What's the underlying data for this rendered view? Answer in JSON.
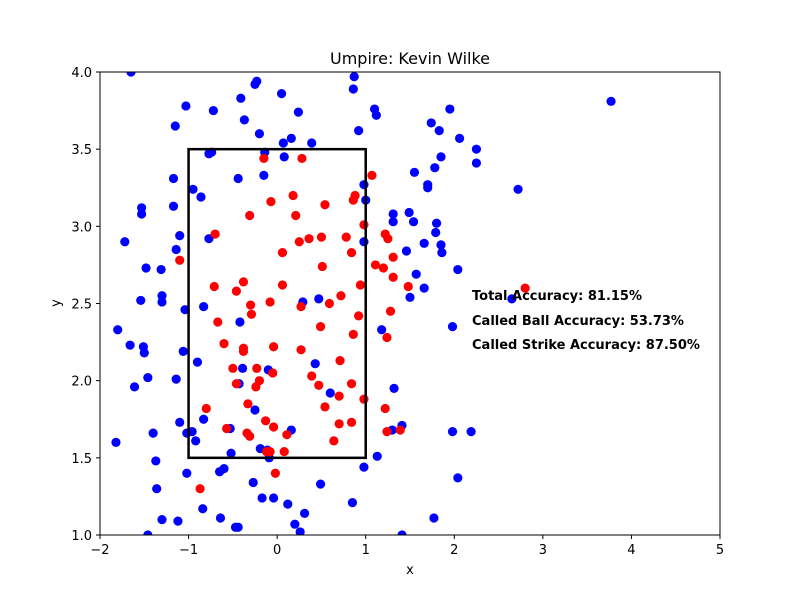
{
  "chart_data": {
    "type": "scatter",
    "title": "Umpire: Kevin Wilke",
    "xlabel": "x",
    "ylabel": "y",
    "xlim": [
      -2,
      5
    ],
    "ylim": [
      1.0,
      4.0
    ],
    "xticks": [
      "−2",
      "−1",
      "0",
      "1",
      "2",
      "3",
      "4",
      "5"
    ],
    "yticks": [
      "1.0",
      "1.5",
      "2.0",
      "2.5",
      "3.0",
      "3.5",
      "4.0"
    ],
    "grid": false,
    "strike_zone": {
      "x": [
        -1,
        1
      ],
      "y": [
        1.5,
        3.5
      ]
    },
    "annotations": [
      "Total Accuracy: 81.15%",
      "Called Ball Accuracy: 53.73%",
      "Called Strike Accuracy: 87.50%"
    ],
    "colors": {
      "ball": "#0000ff",
      "strike": "#ff0000",
      "zone": "#000000"
    },
    "series": [
      {
        "color": "#0000ff",
        "points": [
          [
            -1.65,
            4.0
          ],
          [
            -0.25,
            3.92
          ],
          [
            -0.23,
            3.94
          ],
          [
            0.87,
            3.97
          ],
          [
            0.86,
            3.89
          ],
          [
            -0.41,
            3.83
          ],
          [
            0.05,
            3.86
          ],
          [
            -1.03,
            3.78
          ],
          [
            -0.72,
            3.75
          ],
          [
            1.1,
            3.76
          ],
          [
            1.12,
            3.72
          ],
          [
            0.24,
            3.74
          ],
          [
            -0.37,
            3.69
          ],
          [
            -1.15,
            3.65
          ],
          [
            1.74,
            3.67
          ],
          [
            1.95,
            3.76
          ],
          [
            1.83,
            3.62
          ],
          [
            0.92,
            3.62
          ],
          [
            -0.2,
            3.6
          ],
          [
            0.16,
            3.57
          ],
          [
            0.07,
            3.54
          ],
          [
            0.39,
            3.54
          ],
          [
            2.06,
            3.57
          ],
          [
            2.25,
            3.5
          ],
          [
            2.25,
            3.41
          ],
          [
            -0.77,
            3.47
          ],
          [
            -0.74,
            3.48
          ],
          [
            0.08,
            3.45
          ],
          [
            -0.14,
            3.48
          ],
          [
            1.85,
            3.45
          ],
          [
            1.78,
            3.38
          ],
          [
            1.55,
            3.35
          ],
          [
            -1.17,
            3.31
          ],
          [
            -0.44,
            3.31
          ],
          [
            -0.15,
            3.33
          ],
          [
            1.7,
            3.27
          ],
          [
            1.7,
            3.25
          ],
          [
            2.72,
            3.24
          ],
          [
            -0.95,
            3.24
          ],
          [
            -0.86,
            3.19
          ],
          [
            1.0,
            3.17
          ],
          [
            0.98,
            3.27
          ],
          [
            -1.53,
            3.12
          ],
          [
            -1.53,
            3.08
          ],
          [
            -1.17,
            3.13
          ],
          [
            1.31,
            3.08
          ],
          [
            1.49,
            3.09
          ],
          [
            1.31,
            3.03
          ],
          [
            1.54,
            3.03
          ],
          [
            1.8,
            3.02
          ],
          [
            1.79,
            2.96
          ],
          [
            -1.1,
            2.94
          ],
          [
            -0.77,
            2.92
          ],
          [
            -1.72,
            2.9
          ],
          [
            1.66,
            2.89
          ],
          [
            1.85,
            2.88
          ],
          [
            1.86,
            2.83
          ],
          [
            0.98,
            2.9
          ],
          [
            -1.14,
            2.85
          ],
          [
            1.46,
            2.84
          ],
          [
            -1.48,
            2.73
          ],
          [
            -1.31,
            2.72
          ],
          [
            1.57,
            2.69
          ],
          [
            2.04,
            2.72
          ],
          [
            1.5,
            2.54
          ],
          [
            1.66,
            2.6
          ],
          [
            -1.54,
            2.52
          ],
          [
            -1.3,
            2.55
          ],
          [
            -1.3,
            2.51
          ],
          [
            0.47,
            2.53
          ],
          [
            0.29,
            2.51
          ],
          [
            -0.83,
            2.48
          ],
          [
            -1.04,
            2.46
          ],
          [
            -0.42,
            2.38
          ],
          [
            2.65,
            2.53
          ],
          [
            1.98,
            2.35
          ],
          [
            1.18,
            2.33
          ],
          [
            -1.51,
            2.22
          ],
          [
            -1.5,
            2.18
          ],
          [
            -1.66,
            2.23
          ],
          [
            -1.06,
            2.19
          ],
          [
            -1.8,
            2.33
          ],
          [
            -0.9,
            2.12
          ],
          [
            0.43,
            2.11
          ],
          [
            -0.39,
            2.08
          ],
          [
            -0.1,
            2.07
          ],
          [
            -1.14,
            2.01
          ],
          [
            -1.46,
            2.02
          ],
          [
            -1.61,
            1.96
          ],
          [
            -0.43,
            1.98
          ],
          [
            0.6,
            1.92
          ],
          [
            1.32,
            1.95
          ],
          [
            -0.25,
            1.81
          ],
          [
            -1.1,
            1.73
          ],
          [
            -0.83,
            1.75
          ],
          [
            -0.96,
            1.67
          ],
          [
            -1.02,
            1.66
          ],
          [
            -0.53,
            1.69
          ],
          [
            0.16,
            1.68
          ],
          [
            1.41,
            1.71
          ],
          [
            -1.4,
            1.66
          ],
          [
            -0.92,
            1.61
          ],
          [
            1.3,
            1.68
          ],
          [
            1.98,
            1.67
          ],
          [
            2.19,
            1.67
          ],
          [
            -1.37,
            1.48
          ],
          [
            -0.19,
            1.56
          ],
          [
            -0.11,
            1.55
          ],
          [
            -0.52,
            1.53
          ],
          [
            -0.09,
            1.5
          ],
          [
            -0.6,
            1.43
          ],
          [
            -0.65,
            1.41
          ],
          [
            -1.02,
            1.4
          ],
          [
            0.98,
            1.44
          ],
          [
            1.13,
            1.51
          ],
          [
            2.04,
            1.37
          ],
          [
            -1.36,
            1.3
          ],
          [
            -0.27,
            1.34
          ],
          [
            0.49,
            1.33
          ],
          [
            -0.17,
            1.24
          ],
          [
            -0.04,
            1.24
          ],
          [
            0.12,
            1.2
          ],
          [
            0.31,
            1.14
          ],
          [
            0.85,
            1.21
          ],
          [
            -0.84,
            1.17
          ],
          [
            -0.64,
            1.11
          ],
          [
            -1.3,
            1.1
          ],
          [
            -1.12,
            1.09
          ],
          [
            0.2,
            1.07
          ],
          [
            -0.47,
            1.05
          ],
          [
            -0.44,
            1.05
          ],
          [
            0.26,
            1.02
          ],
          [
            1.77,
            1.11
          ],
          [
            -1.82,
            1.6
          ],
          [
            3.77,
            3.81
          ],
          [
            -1.46,
            1.0
          ],
          [
            1.41,
            1.0
          ]
        ]
      },
      {
        "color": "#ff0000",
        "points": [
          [
            -0.15,
            3.44
          ],
          [
            0.28,
            3.44
          ],
          [
            1.07,
            3.33
          ],
          [
            0.88,
            3.2
          ],
          [
            0.18,
            3.2
          ],
          [
            0.86,
            3.17
          ],
          [
            -0.07,
            3.16
          ],
          [
            0.54,
            3.14
          ],
          [
            -0.31,
            3.07
          ],
          [
            0.21,
            3.07
          ],
          [
            0.98,
            3.01
          ],
          [
            -0.7,
            2.95
          ],
          [
            0.36,
            2.92
          ],
          [
            0.5,
            2.93
          ],
          [
            0.78,
            2.93
          ],
          [
            1.22,
            2.95
          ],
          [
            1.25,
            2.92
          ],
          [
            0.25,
            2.9
          ],
          [
            0.06,
            2.83
          ],
          [
            0.84,
            2.83
          ],
          [
            1.31,
            2.8
          ],
          [
            -1.1,
            2.78
          ],
          [
            1.11,
            2.75
          ],
          [
            1.2,
            2.73
          ],
          [
            0.51,
            2.74
          ],
          [
            1.31,
            2.67
          ],
          [
            -0.38,
            2.64
          ],
          [
            0.06,
            2.62
          ],
          [
            -0.71,
            2.61
          ],
          [
            0.94,
            2.62
          ],
          [
            1.48,
            2.61
          ],
          [
            2.8,
            2.6
          ],
          [
            -0.46,
            2.58
          ],
          [
            0.72,
            2.55
          ],
          [
            -0.08,
            2.51
          ],
          [
            0.59,
            2.5
          ],
          [
            -0.3,
            2.49
          ],
          [
            0.27,
            2.48
          ],
          [
            -0.29,
            2.43
          ],
          [
            0.92,
            2.42
          ],
          [
            1.28,
            2.45
          ],
          [
            -0.67,
            2.38
          ],
          [
            0.49,
            2.35
          ],
          [
            0.86,
            2.3
          ],
          [
            1.24,
            2.28
          ],
          [
            -0.6,
            2.24
          ],
          [
            -0.38,
            2.21
          ],
          [
            -0.38,
            2.19
          ],
          [
            -0.04,
            2.22
          ],
          [
            0.27,
            2.2
          ],
          [
            0.71,
            2.13
          ],
          [
            -0.23,
            2.08
          ],
          [
            -0.05,
            2.05
          ],
          [
            -0.5,
            2.08
          ],
          [
            0.39,
            2.03
          ],
          [
            -0.2,
            2.0
          ],
          [
            -0.24,
            1.96
          ],
          [
            -0.46,
            1.98
          ],
          [
            0.47,
            1.97
          ],
          [
            0.84,
            1.98
          ],
          [
            0.7,
            1.9
          ],
          [
            0.98,
            1.88
          ],
          [
            -0.33,
            1.85
          ],
          [
            0.54,
            1.83
          ],
          [
            1.22,
            1.82
          ],
          [
            -0.8,
            1.82
          ],
          [
            -0.13,
            1.74
          ],
          [
            0.7,
            1.72
          ],
          [
            0.84,
            1.73
          ],
          [
            -0.34,
            1.66
          ],
          [
            -0.31,
            1.64
          ],
          [
            -0.04,
            1.7
          ],
          [
            0.11,
            1.65
          ],
          [
            1.24,
            1.67
          ],
          [
            1.39,
            1.68
          ],
          [
            0.64,
            1.61
          ],
          [
            -0.57,
            1.69
          ],
          [
            -0.12,
            1.54
          ],
          [
            -0.08,
            1.54
          ],
          [
            0.08,
            1.54
          ],
          [
            -0.02,
            1.4
          ],
          [
            -0.87,
            1.3
          ]
        ]
      }
    ]
  }
}
